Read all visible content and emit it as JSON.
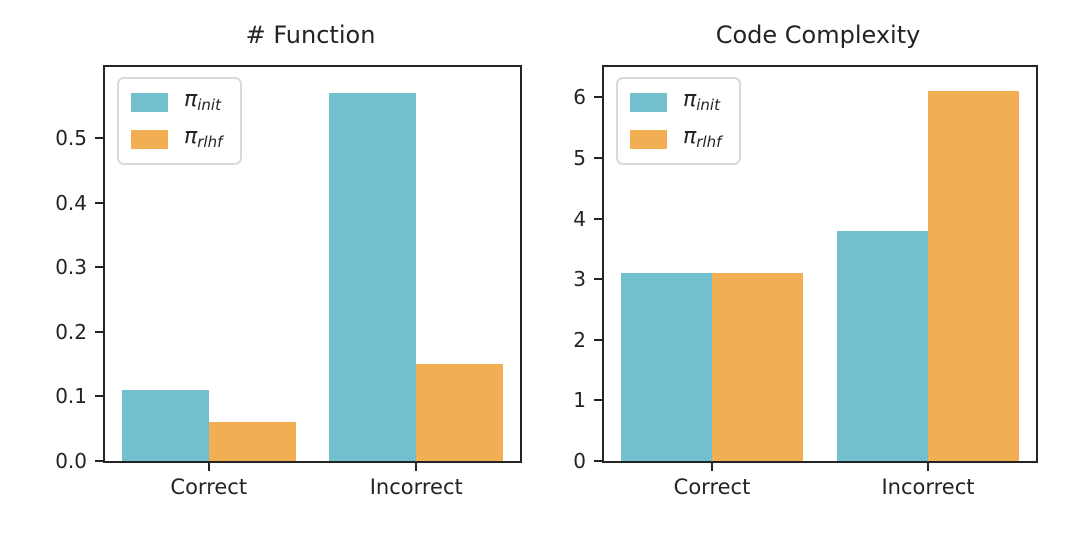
{
  "figure": {
    "background": "#ffffff"
  },
  "colors": {
    "series_init": "#72c0ce",
    "series_rlhf": "#f2ae52",
    "axis": "#242424",
    "text": "#242424",
    "legend_border": "#d9d9d9"
  },
  "legend": {
    "entries": [
      {
        "symbol": "π",
        "subscript": "init"
      },
      {
        "symbol": "π",
        "subscript": "rlhf"
      }
    ]
  },
  "chart_data": [
    {
      "type": "bar",
      "title": "# Function",
      "categories": [
        "Correct",
        "Incorrect"
      ],
      "series": [
        {
          "name": "π_init",
          "color": "#72c0ce",
          "values": [
            0.11,
            0.57
          ]
        },
        {
          "name": "π_rlhf",
          "color": "#f2ae52",
          "values": [
            0.06,
            0.15
          ]
        }
      ],
      "xlabel": "",
      "ylabel": "",
      "ylim": [
        0,
        0.61
      ],
      "yticks": [
        0.0,
        0.1,
        0.2,
        0.3,
        0.4,
        0.5
      ],
      "ytick_labels": [
        "0.0",
        "0.1",
        "0.2",
        "0.3",
        "0.4",
        "0.5"
      ],
      "grid": false,
      "legend_position": "upper left"
    },
    {
      "type": "bar",
      "title": "Code Complexity",
      "categories": [
        "Correct",
        "Incorrect"
      ],
      "series": [
        {
          "name": "π_init",
          "color": "#72c0ce",
          "values": [
            3.1,
            3.8
          ]
        },
        {
          "name": "π_rlhf",
          "color": "#f2ae52",
          "values": [
            3.1,
            6.1
          ]
        }
      ],
      "xlabel": "",
      "ylabel": "",
      "ylim": [
        0,
        6.5
      ],
      "yticks": [
        0,
        1,
        2,
        3,
        4,
        5,
        6
      ],
      "ytick_labels": [
        "0",
        "1",
        "2",
        "3",
        "4",
        "5",
        "6"
      ],
      "grid": false,
      "legend_position": "upper left"
    }
  ]
}
